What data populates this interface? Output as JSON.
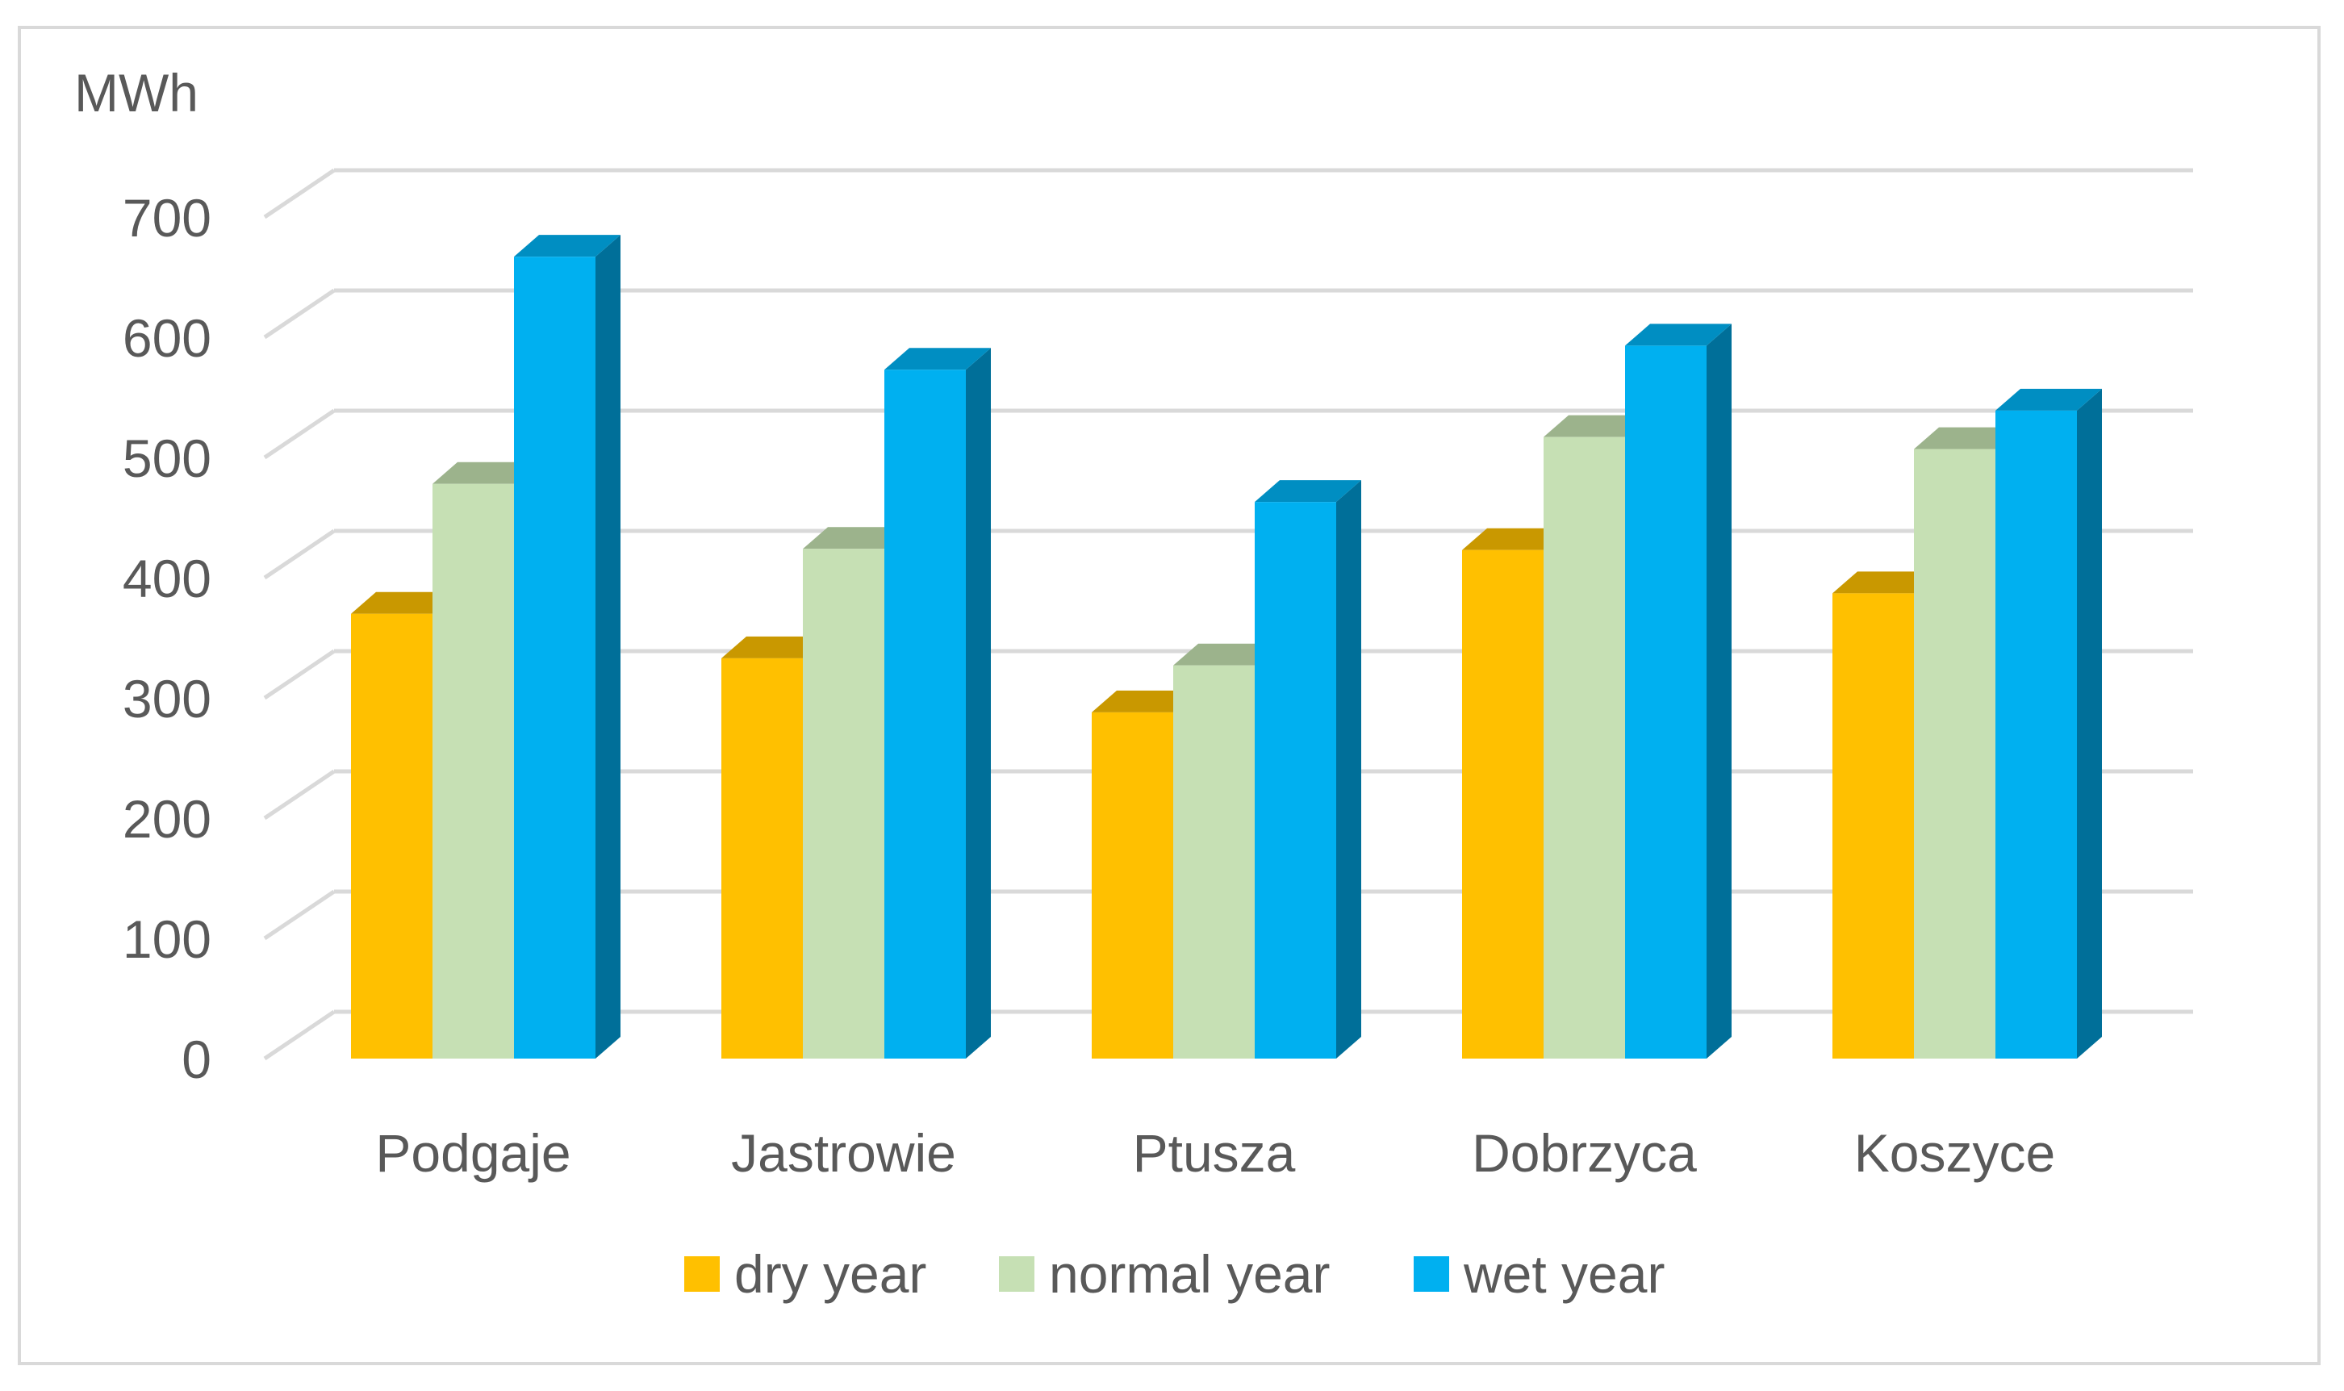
{
  "chart_data": {
    "type": "bar",
    "style": "3d-clustered-column",
    "title": "",
    "ylabel": "MWh",
    "xlabel": "",
    "ylim": [
      0,
      700
    ],
    "yticks": [
      0,
      100,
      200,
      300,
      400,
      500,
      600,
      700
    ],
    "grid": true,
    "legend_position": "bottom",
    "categories": [
      "Podgaje",
      "Jastrowie",
      "Ptusza",
      "Dobrzyca",
      "Koszyce"
    ],
    "series": [
      {
        "name": "dry year",
        "values": [
          370,
          333,
          288,
          423,
          387
        ]
      },
      {
        "name": "normal year",
        "values": [
          478,
          424,
          327,
          517,
          507
        ]
      },
      {
        "name": "wet year",
        "values": [
          667,
          573,
          463,
          593,
          539
        ]
      }
    ]
  },
  "colors": {
    "dry year": {
      "front": "#ffc000",
      "top": "#c99800",
      "side": "#b38600"
    },
    "normal year": {
      "front": "#c6e0b4",
      "top": "#9cb38c",
      "side": "#9fb391"
    },
    "wet year": {
      "front": "#00b0f0",
      "top": "#008ec2",
      "side": "#006f99"
    },
    "grid": "#d9d9d9",
    "text": "#595959"
  }
}
